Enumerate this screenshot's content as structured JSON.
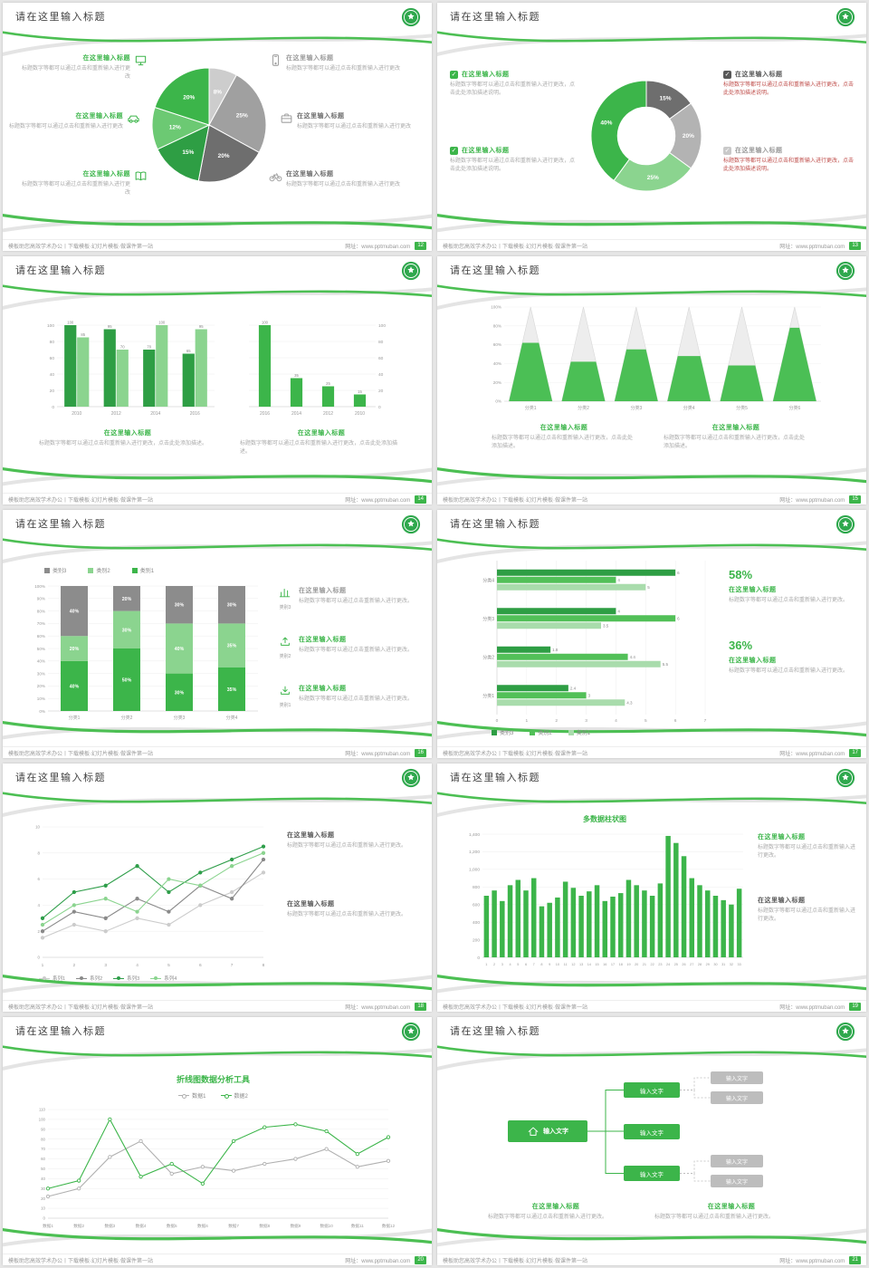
{
  "common": {
    "slide_title": "请在这里输入标题",
    "footer_left": "模板助您高效学术办公丨下载模板·幻灯片模板·做课件第一站",
    "footer_right": "网址：www.pptmuban.com",
    "accent_green": "#3cb54a"
  },
  "slides": {
    "s12": {
      "page": "12",
      "blocks": [
        {
          "heading": "在这里输入标题",
          "desc": "标题数字等都可以通过点击和重新输入进行更改"
        },
        {
          "heading": "在这里输入标题",
          "desc": "标题数字等都可以通过点击和重新输入进行更改"
        },
        {
          "heading": "在这里输入标题",
          "desc": "标题数字等都可以通过点击和重新输入进行更改"
        },
        {
          "heading": "在这里输入标题",
          "desc": "标题数字等都可以通过点击和重新输入进行更改"
        },
        {
          "heading": "在这里输入标题",
          "desc": "标题数字等都可以通过点击和重新输入进行更改"
        },
        {
          "heading": "在这里输入标题",
          "desc": "标题数字等都可以通过点击和重新输入进行更改"
        }
      ]
    },
    "s13": {
      "page": "13",
      "left": [
        {
          "heading": "在这里输入标题",
          "desc": "标题数字等都可以通过点击和重新输入进行更改，点击此处添加描述说明。"
        },
        {
          "heading": "在这里输入标题",
          "desc": "标题数字等都可以通过点击和重新输入进行更改，点击此处添加描述说明。"
        }
      ],
      "right": [
        {
          "heading": "在这里输入标题",
          "desc": "标题数字等都可以通过点击和重新输入进行更改，点击此处添加描述说明。"
        },
        {
          "heading": "在这里输入标题",
          "desc": "标题数字等都可以通过点击和重新输入进行更改，点击此处添加描述说明。"
        }
      ]
    },
    "s14": {
      "page": "14",
      "blocks": [
        {
          "heading": "在这里输入标题",
          "desc": "标题数字等都可以通过点击和重新输入进行更改，点击此处添加描述。"
        },
        {
          "heading": "在这里输入标题",
          "desc": "标题数字等都可以通过点击和重新输入进行更改，点击此处添加描述。"
        }
      ]
    },
    "s15": {
      "page": "15",
      "blocks": [
        {
          "heading": "在这里输入标题",
          "desc": "标题数字等都可以通过点击和重新输入进行更改，点击此处添加描述。"
        },
        {
          "heading": "在这里输入标题",
          "desc": "标题数字等都可以通过点击和重新输入进行更改，点击此处添加描述。"
        }
      ]
    },
    "s16": {
      "page": "16",
      "rows": [
        {
          "caption": "类别3",
          "heading": "在这里输入标题",
          "desc": "标题数字等都可以通过点击重新输入进行更改。"
        },
        {
          "caption": "类别2",
          "heading": "在这里输入标题",
          "desc": "标题数字等都可以通过点击重新输入进行更改。"
        },
        {
          "caption": "类别1",
          "heading": "在这里输入标题",
          "desc": "标题数字等都可以通过点击重新输入进行更改。"
        }
      ]
    },
    "s17": {
      "page": "17",
      "stats": [
        {
          "value": "58%",
          "heading": "在这里输入标题",
          "desc": "标题数字等都可以通过点击和重新输入进行更改。"
        },
        {
          "value": "36%",
          "heading": "在这里输入标题",
          "desc": "标题数字等都可以通过点击和重新输入进行更改。"
        }
      ]
    },
    "s18": {
      "page": "18",
      "blocks": [
        {
          "heading": "在这里输入标题",
          "desc": "标题数字等都可以通过点击和重新输入进行更改。"
        },
        {
          "heading": "在这里输入标题",
          "desc": "标题数字等都可以通过点击和重新输入进行更改。"
        }
      ]
    },
    "s19": {
      "page": "19",
      "blocks": [
        {
          "heading": "在这里输入标题",
          "desc": "标题数字等都可以通过点击和重新输入进行更改。"
        },
        {
          "heading": "在这里输入标题",
          "desc": "标题数字等都可以通过点击和重新输入进行更改。"
        }
      ]
    },
    "s20": {
      "page": "20"
    },
    "s21": {
      "page": "21",
      "root": "输入文字",
      "greens": [
        "输入文字",
        "输入文字",
        "输入文字"
      ],
      "grays": [
        "输入文字",
        "输入文字",
        "输入文字",
        "输入文字"
      ],
      "blocks": [
        {
          "heading": "在这里输入标题",
          "desc": "标题数字等都可以通过点击和重新输入进行更改。"
        },
        {
          "heading": "在这里输入标题",
          "desc": "标题数字等都可以通过点击和重新输入进行更改。"
        }
      ]
    }
  },
  "chart_data": [
    {
      "type": "pie",
      "values": [
        8,
        25,
        20,
        15,
        12,
        20
      ],
      "labels": [
        "8%",
        "25%",
        "20%",
        "15%",
        "12%",
        "20%"
      ],
      "colors": [
        "#cdcdcd",
        "#a0a0a0",
        "#6e6e6e",
        "#2e9e44",
        "#6cc973",
        "#3cb54a"
      ]
    },
    {
      "type": "pie",
      "inner": 0.52,
      "values": [
        15,
        20,
        25,
        40
      ],
      "labels": [
        "15%",
        "20%",
        "25%",
        "40%"
      ],
      "colors": [
        "#6e6e6e",
        "#b3b3b3",
        "#8bd48f",
        "#3cb54a"
      ]
    },
    {
      "type": "bar",
      "categories": [
        "2010",
        "2012",
        "2014",
        "2016"
      ],
      "ylim": [
        0,
        100
      ],
      "yticks": [
        0,
        20,
        40,
        60,
        80,
        100
      ],
      "labels": true,
      "series": [
        {
          "name": "系列1",
          "color": "#2e9e44",
          "values": [
            100,
            95,
            70,
            65
          ]
        },
        {
          "name": "系列2",
          "color": "#8bd48f",
          "values": [
            85,
            70,
            100,
            95
          ]
        }
      ]
    },
    {
      "type": "bar",
      "yaxis": "right",
      "categories": [
        "2016",
        "2014",
        "2012",
        "2010"
      ],
      "ylim": [
        0,
        100
      ],
      "yticks": [
        0,
        20,
        40,
        60,
        80,
        100
      ],
      "labels": true,
      "series": [
        {
          "name": "系列1",
          "color": "#3cb54a",
          "values": [
            100,
            35,
            25,
            15
          ]
        }
      ]
    },
    {
      "type": "pyramid",
      "categories": [
        "分类1",
        "分类2",
        "分类3",
        "分类4",
        "分类5",
        "分类6"
      ],
      "fractions": [
        0.62,
        0.42,
        0.55,
        0.48,
        0.38,
        0.78
      ],
      "yticks": [
        "0%",
        "20%",
        "40%",
        "60%",
        "80%",
        "100%"
      ],
      "color": "#4bbf55"
    },
    {
      "type": "stackedbar",
      "categories": [
        "分类1",
        "分类2",
        "分类3",
        "分类4"
      ],
      "yticks": [
        0,
        10,
        20,
        30,
        40,
        50,
        60,
        70,
        80,
        90,
        100
      ],
      "series": [
        {
          "name": "类别1",
          "color": "#3cb54a",
          "values": [
            40,
            50,
            30,
            35
          ]
        },
        {
          "name": "类别2",
          "color": "#8bd48f",
          "values": [
            20,
            30,
            40,
            35
          ]
        },
        {
          "name": "类别3",
          "color": "#8c8c8c",
          "values": [
            40,
            20,
            30,
            30
          ]
        }
      ]
    },
    {
      "type": "hbar",
      "categories": [
        "分类4",
        "分类3",
        "分类2",
        "分类1"
      ],
      "xmax": 7,
      "series": [
        {
          "name": "类别3",
          "color": "#2e9e44",
          "values": [
            6,
            4,
            1.8,
            2.4
          ]
        },
        {
          "name": "类别2",
          "color": "#52c058",
          "values": [
            4,
            6,
            4.4,
            3
          ]
        },
        {
          "name": "类别1",
          "color": "#a9dcac",
          "values": [
            5,
            3.5,
            5.5,
            4.3
          ]
        }
      ]
    },
    {
      "type": "line",
      "x": [
        "1",
        "2",
        "3",
        "4",
        "5",
        "6",
        "7",
        "8"
      ],
      "ylim": [
        0,
        10
      ],
      "yticks": [
        0,
        2,
        4,
        6,
        8,
        10
      ],
      "markers": true,
      "series": [
        {
          "name": "系列1",
          "color": "#cccccc",
          "values": [
            1.5,
            2.5,
            2,
            3,
            2.5,
            4,
            5,
            6.5
          ]
        },
        {
          "name": "系列2",
          "color": "#8a8a8a",
          "values": [
            2,
            3.5,
            3,
            4.5,
            3.5,
            5.5,
            4.5,
            7.5
          ]
        },
        {
          "name": "系列3",
          "color": "#2f9e4a",
          "values": [
            3,
            5,
            5.5,
            7,
            5,
            6.5,
            7.5,
            8.5
          ]
        },
        {
          "name": "系列4",
          "color": "#8bd48f",
          "values": [
            2.5,
            4,
            4.5,
            3.5,
            6,
            5.5,
            7,
            8
          ]
        }
      ]
    },
    {
      "type": "bar",
      "title": "多数据柱状图",
      "categories": [
        "1",
        "2",
        "3",
        "4",
        "5",
        "6",
        "7",
        "8",
        "9",
        "10",
        "11",
        "12",
        "13",
        "14",
        "15",
        "16",
        "17",
        "18",
        "19",
        "20",
        "21",
        "22",
        "23",
        "24",
        "25",
        "26",
        "27",
        "28",
        "29",
        "30",
        "31",
        "32",
        "33"
      ],
      "ylim": [
        0,
        1400
      ],
      "yticks": [
        0,
        200,
        400,
        600,
        800,
        1000,
        1200,
        1400
      ],
      "ylabels": [
        "0",
        "200",
        "400",
        "600",
        "800",
        "1,000",
        "1,200",
        "1,400"
      ],
      "xfont": 3.8,
      "series": [
        {
          "name": "数据",
          "color": "#3cb54a",
          "values": [
            700,
            760,
            640,
            820,
            880,
            760,
            900,
            580,
            620,
            680,
            860,
            790,
            700,
            750,
            820,
            640,
            690,
            730,
            880,
            820,
            760,
            700,
            840,
            1380,
            1300,
            1150,
            900,
            820,
            760,
            700,
            650,
            600,
            780
          ]
        }
      ]
    },
    {
      "type": "line",
      "title": "折线图数据分析工具",
      "x": [
        "数据1",
        "数据2",
        "数据3",
        "数据4",
        "数据5",
        "数据6",
        "数据7",
        "数据8",
        "数据9",
        "数据10",
        "数据11",
        "数据12"
      ],
      "ylim": [
        0,
        110
      ],
      "yticks": [
        0,
        10,
        20,
        30,
        40,
        50,
        60,
        70,
        80,
        90,
        100,
        110
      ],
      "markers": "hollow",
      "xfont": 4.6,
      "series": [
        {
          "name": "数据1",
          "color": "#b0b0b0",
          "values": [
            22,
            30,
            62,
            78,
            45,
            52,
            48,
            55,
            60,
            70,
            52,
            58
          ]
        },
        {
          "name": "数据2",
          "color": "#3cb54a",
          "values": [
            30,
            38,
            100,
            42,
            55,
            35,
            78,
            92,
            95,
            88,
            65,
            82
          ]
        }
      ]
    }
  ]
}
